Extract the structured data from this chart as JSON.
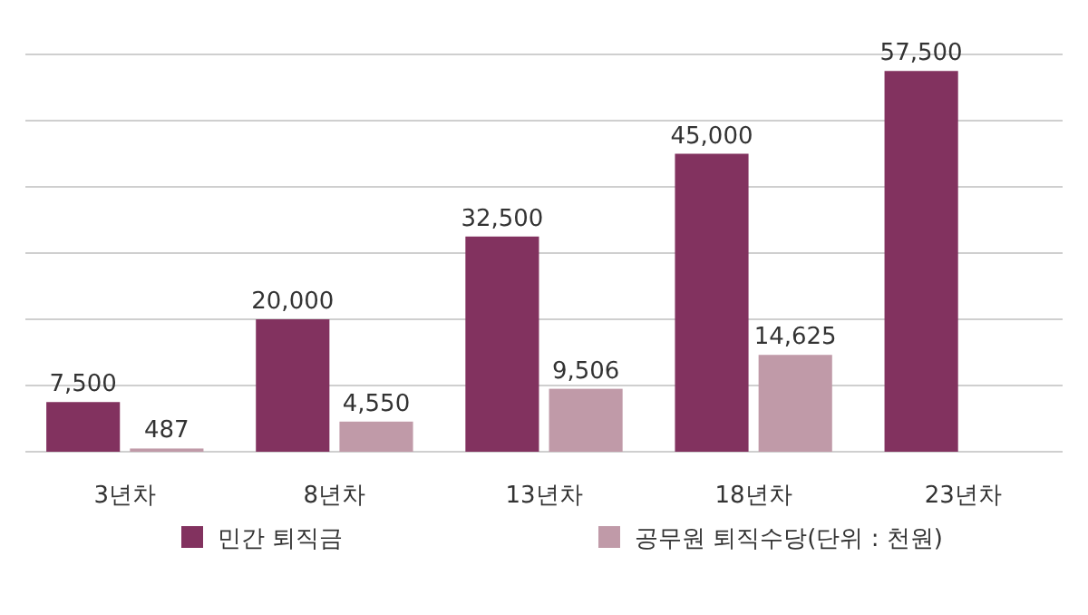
{
  "chart_data": {
    "type": "bar",
    "categories": [
      "3년차",
      "8년차",
      "13년차",
      "18년차",
      "23년차"
    ],
    "series": [
      {
        "name": "민간 퇴직금",
        "color": "#82325f",
        "values": [
          7500,
          20000,
          32500,
          45000,
          57500
        ],
        "value_labels": [
          "7,500",
          "20,000",
          "32,500",
          "45,000",
          "57,500"
        ]
      },
      {
        "name": "공무원 퇴직수당(단위 : 천원)",
        "color": "#c09aa8",
        "values": [
          487,
          4550,
          9506,
          14625,
          null
        ],
        "value_labels": [
          "487",
          "4,550",
          "9,506",
          "14,625",
          null
        ]
      }
    ],
    "ylim": [
      0,
      60000
    ],
    "yticks": [
      {
        "value": 0,
        "label": null
      },
      {
        "value": 10000,
        "label": null
      },
      {
        "value": 20000,
        "label": null
      },
      {
        "value": 30000,
        "label": null
      },
      {
        "value": 40000,
        "label": null
      },
      {
        "value": 50000,
        "label": null
      },
      {
        "value": 60000,
        "label": null
      }
    ],
    "tick_labels": "x",
    "grid": "y",
    "legend": "bottom"
  }
}
